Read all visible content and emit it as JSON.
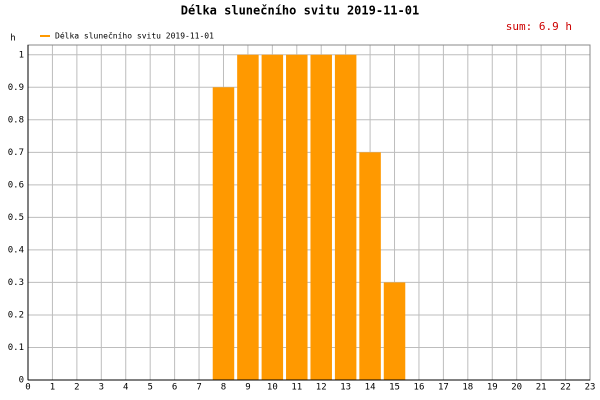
{
  "chart_data": {
    "type": "bar",
    "title": "Délka slunečního svitu 2019-11-01",
    "y_label": "h",
    "annotation": "sum: 6.9 h",
    "x": [
      8,
      9,
      10,
      11,
      12,
      13,
      14,
      15
    ],
    "series": [
      {
        "name": "Délka slunečního svitu 2019-11-01",
        "color": "#ff9900",
        "values": [
          0.9,
          1,
          1,
          1,
          1,
          1,
          0.7,
          0.3
        ]
      }
    ],
    "xlim": [
      0,
      23
    ],
    "xticks": [
      0,
      1,
      2,
      3,
      4,
      5,
      6,
      7,
      8,
      9,
      10,
      11,
      12,
      13,
      14,
      15,
      16,
      17,
      18,
      19,
      20,
      21,
      22,
      23
    ],
    "ylim": [
      0,
      1.03
    ],
    "yticks": [
      0,
      0.1,
      0.2,
      0.3,
      0.4,
      0.5,
      0.6,
      0.7,
      0.8,
      0.9,
      1
    ],
    "grid": true
  }
}
